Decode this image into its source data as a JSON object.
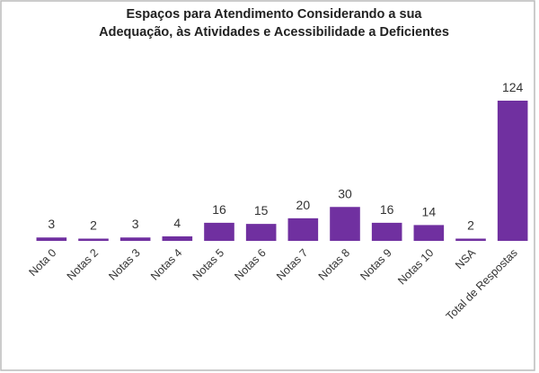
{
  "chart_data": {
    "type": "bar",
    "title": [
      "Espaços para Atendimento Considerando a sua",
      "Adequação, às Atividades e Acessibilidade a Deficientes"
    ],
    "categories": [
      "Nota 0",
      "Notas 2",
      "Notas 3",
      "Notas 4",
      "Notas 5",
      "Notas 6",
      "Notas 7",
      "Notas 8",
      "Notas 9",
      "Notas 10",
      "NSA",
      "Total de Respostas"
    ],
    "values": [
      3,
      2,
      3,
      4,
      16,
      15,
      20,
      30,
      16,
      14,
      2,
      124
    ],
    "color": "#7030a0"
  }
}
